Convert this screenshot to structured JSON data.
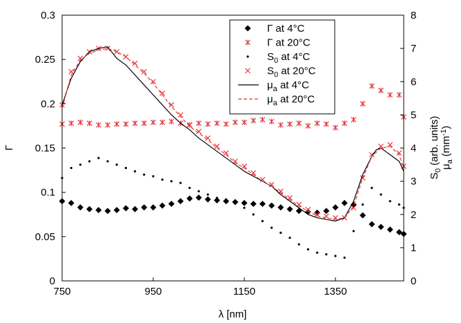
{
  "chart_data": {
    "type": "scatter",
    "title": "",
    "xlabel": "λ [nm]",
    "ylabel_left": "Γ",
    "ylabel_right_line1": "S",
    "ylabel_right_line1_sub": "0",
    "ylabel_right_line1_rest": " (arb. units)",
    "ylabel_right_line2": "μ",
    "ylabel_right_line2_sub": "a",
    "ylabel_right_line2_rest": " (mm",
    "ylabel_right_line2_sup": "-1",
    "ylabel_right_line2_end": ")",
    "xlim": [
      750,
      1500
    ],
    "ylim_left": [
      0,
      0.3
    ],
    "ylim_right": [
      0,
      8
    ],
    "x_ticks": [
      750,
      950,
      1150,
      1350
    ],
    "y_left_ticks": [
      "0",
      "0.05",
      "0.1",
      "0.15",
      "0.2",
      "0.25",
      "0.3"
    ],
    "y_left_tick_values": [
      0,
      0.05,
      0.1,
      0.15,
      0.2,
      0.25,
      0.3
    ],
    "y_right_ticks": [
      "0",
      "1",
      "2",
      "3",
      "4",
      "5",
      "6",
      "7",
      "8"
    ],
    "y_right_tick_values": [
      0,
      1,
      2,
      3,
      4,
      5,
      6,
      7,
      8
    ],
    "legend_position": "top-right",
    "legend": [
      {
        "main": "Γ",
        "sub": "",
        "rest": " at 4°C",
        "marker": "diamond",
        "color": "#000000"
      },
      {
        "main": "Γ",
        "sub": "",
        "rest": " at 20°C",
        "marker": "star",
        "color": "#e8333a"
      },
      {
        "main": "S",
        "sub": "0",
        "rest": " at 4°C",
        "marker": "dot",
        "color": "#000000"
      },
      {
        "main": "S",
        "sub": "0",
        "rest": " at 20°C",
        "marker": "cross",
        "color": "#e8333a"
      },
      {
        "main": "μ",
        "sub": "a",
        "rest": " at 4°C",
        "marker": "solid",
        "color": "#000000"
      },
      {
        "main": "μ",
        "sub": "a",
        "rest": " at 20°C",
        "marker": "dashed",
        "color": "#e8333a"
      }
    ],
    "series": [
      {
        "name": "Γ at 4°C",
        "axis": "left",
        "marker": "diamond",
        "color": "#000000",
        "x": [
          750,
          770,
          790,
          810,
          830,
          850,
          870,
          890,
          910,
          930,
          950,
          970,
          990,
          1010,
          1030,
          1050,
          1070,
          1090,
          1110,
          1130,
          1150,
          1170,
          1190,
          1210,
          1230,
          1250,
          1270,
          1290,
          1310,
          1330,
          1350,
          1370,
          1390,
          1410,
          1430,
          1450,
          1470,
          1490,
          1500
        ],
        "y": [
          0.09,
          0.088,
          0.083,
          0.081,
          0.08,
          0.079,
          0.08,
          0.082,
          0.081,
          0.083,
          0.083,
          0.085,
          0.087,
          0.09,
          0.093,
          0.094,
          0.092,
          0.091,
          0.09,
          0.089,
          0.088,
          0.087,
          0.087,
          0.085,
          0.083,
          0.081,
          0.079,
          0.078,
          0.077,
          0.079,
          0.083,
          0.088,
          0.086,
          0.074,
          0.064,
          0.061,
          0.058,
          0.055,
          0.053
        ]
      },
      {
        "name": "Γ at 20°C",
        "axis": "left",
        "marker": "star",
        "color": "#e8333a",
        "x": [
          750,
          770,
          790,
          810,
          830,
          850,
          870,
          890,
          910,
          930,
          950,
          970,
          990,
          1010,
          1030,
          1050,
          1070,
          1090,
          1110,
          1130,
          1150,
          1170,
          1190,
          1210,
          1230,
          1250,
          1270,
          1290,
          1310,
          1330,
          1350,
          1370,
          1390,
          1410,
          1430,
          1450,
          1470,
          1490,
          1500
        ],
        "y": [
          0.177,
          0.178,
          0.179,
          0.178,
          0.176,
          0.176,
          0.177,
          0.177,
          0.178,
          0.178,
          0.179,
          0.179,
          0.18,
          0.178,
          0.176,
          0.178,
          0.177,
          0.178,
          0.177,
          0.179,
          0.179,
          0.181,
          0.182,
          0.18,
          0.176,
          0.177,
          0.178,
          0.175,
          0.178,
          0.177,
          0.173,
          0.178,
          0.182,
          0.2,
          0.22,
          0.215,
          0.21,
          0.21,
          0.185
        ]
      },
      {
        "name": "S0 at 4°C",
        "axis": "right",
        "marker": "dot",
        "color": "#000000",
        "x": [
          750,
          770,
          790,
          810,
          830,
          850,
          870,
          890,
          910,
          930,
          950,
          970,
          990,
          1010,
          1030,
          1050,
          1070,
          1090,
          1110,
          1130,
          1150,
          1170,
          1190,
          1210,
          1230,
          1250,
          1270,
          1290,
          1310,
          1330,
          1350,
          1370,
          1390,
          1410,
          1430,
          1450,
          1470,
          1490,
          1500
        ],
        "y": [
          3.1,
          3.4,
          3.5,
          3.6,
          3.7,
          3.6,
          3.5,
          3.4,
          3.3,
          3.2,
          3.15,
          3.05,
          3.0,
          2.95,
          2.8,
          2.7,
          2.6,
          2.5,
          2.45,
          2.35,
          2.2,
          2.0,
          1.8,
          1.6,
          1.45,
          1.3,
          1.1,
          0.95,
          0.85,
          0.8,
          0.75,
          0.7,
          1.5,
          2.3,
          2.8,
          2.6,
          2.4,
          2.3,
          2.2
        ]
      },
      {
        "name": "S0 at 20°C",
        "axis": "right",
        "marker": "cross",
        "color": "#e8333a",
        "x": [
          750,
          770,
          790,
          810,
          830,
          850,
          870,
          890,
          910,
          930,
          950,
          970,
          990,
          1010,
          1030,
          1050,
          1070,
          1090,
          1110,
          1130,
          1150,
          1170,
          1190,
          1210,
          1230,
          1250,
          1270,
          1290,
          1310,
          1330,
          1350,
          1370,
          1390,
          1410,
          1430,
          1450,
          1470,
          1490,
          1500
        ],
        "y": [
          5.3,
          6.3,
          6.7,
          6.9,
          7.0,
          7.0,
          6.9,
          6.75,
          6.55,
          6.3,
          6.0,
          5.65,
          5.3,
          5.0,
          4.7,
          4.5,
          4.3,
          4.05,
          3.85,
          3.6,
          3.45,
          3.25,
          3.05,
          2.9,
          2.7,
          2.5,
          2.3,
          2.15,
          2.0,
          1.95,
          1.9,
          1.9,
          2.2,
          3.1,
          3.8,
          4.05,
          4.1,
          3.85,
          3.45
        ]
      },
      {
        "name": "μa at 4°C",
        "axis": "right",
        "line": "solid",
        "color": "#000000",
        "x": [
          750,
          770,
          790,
          810,
          830,
          850,
          870,
          890,
          910,
          930,
          950,
          970,
          990,
          1010,
          1030,
          1050,
          1070,
          1090,
          1110,
          1130,
          1150,
          1170,
          1190,
          1210,
          1230,
          1250,
          1270,
          1290,
          1310,
          1330,
          1350,
          1370,
          1390,
          1410,
          1430,
          1440,
          1450,
          1460,
          1470,
          1490,
          1500
        ],
        "y": [
          5.3,
          6.1,
          6.6,
          6.9,
          7.0,
          7.05,
          6.7,
          6.5,
          6.2,
          5.9,
          5.6,
          5.3,
          5.0,
          4.75,
          4.55,
          4.3,
          4.1,
          3.9,
          3.7,
          3.5,
          3.3,
          3.15,
          3.0,
          2.85,
          2.6,
          2.4,
          2.2,
          2.0,
          1.9,
          1.85,
          1.8,
          1.9,
          2.4,
          3.2,
          3.75,
          3.95,
          4.0,
          3.9,
          3.8,
          3.6,
          3.3
        ]
      },
      {
        "name": "μa at 20°C",
        "axis": "right",
        "line": "dashed",
        "color": "#e8333a",
        "x": [
          750,
          770,
          790,
          810,
          830,
          850,
          870,
          890,
          910,
          930,
          950,
          970,
          990,
          1010,
          1030,
          1050,
          1070,
          1090,
          1110,
          1130,
          1150,
          1170,
          1190,
          1210,
          1230,
          1250,
          1270,
          1290,
          1310,
          1330,
          1350,
          1370,
          1390,
          1410,
          1430,
          1450,
          1470,
          1490,
          1500
        ],
        "y": [
          5.2,
          6.2,
          6.65,
          6.85,
          6.95,
          7.0,
          6.9,
          6.75,
          6.5,
          6.25,
          5.95,
          5.6,
          5.25,
          4.95,
          4.65,
          4.45,
          4.25,
          4.0,
          3.8,
          3.55,
          3.4,
          3.2,
          3.0,
          2.85,
          2.65,
          2.45,
          2.25,
          2.1,
          1.95,
          1.9,
          1.85,
          1.9,
          2.25,
          3.1,
          3.75,
          4.0,
          4.05,
          3.8,
          3.4
        ]
      }
    ]
  }
}
